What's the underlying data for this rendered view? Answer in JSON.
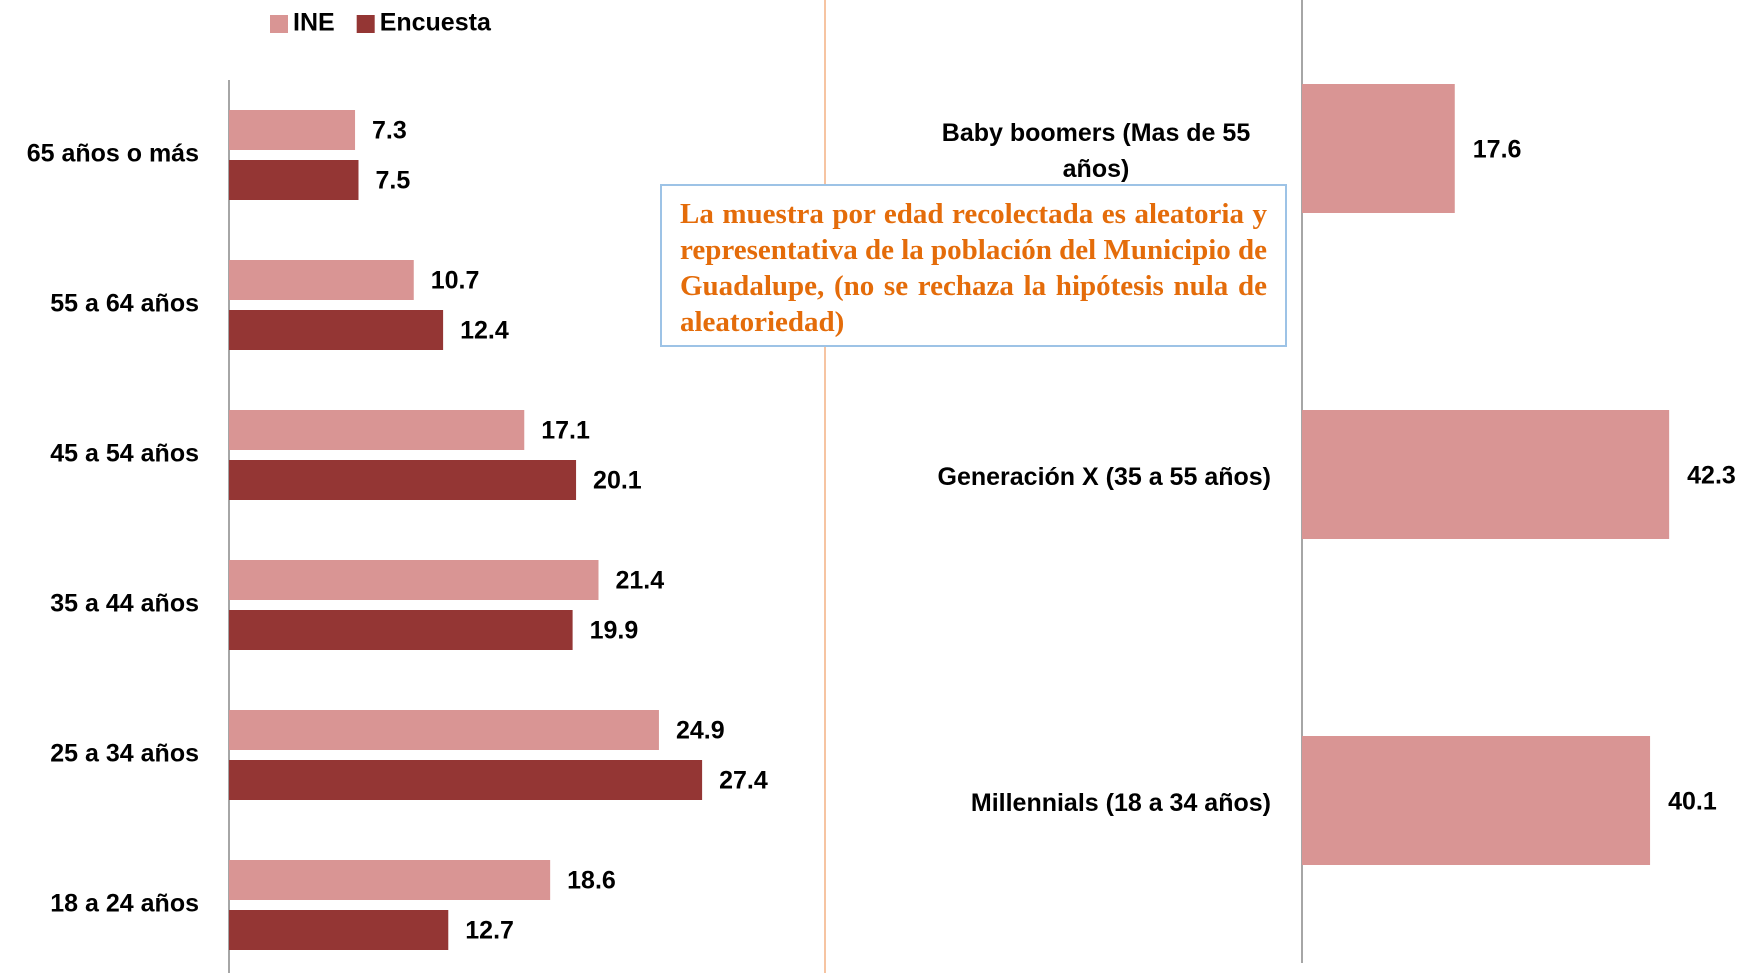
{
  "chart_data": [
    {
      "type": "bar",
      "orientation": "horizontal",
      "categories": [
        "65 años o más",
        "55 a 64 años",
        "45 a 54 años",
        "35 a 44 años",
        "25 a 34 años",
        "18 a 24 años"
      ],
      "series": [
        {
          "name": "INE",
          "color": "#d99594",
          "values": [
            7.3,
            10.7,
            17.1,
            21.4,
            24.9,
            18.6
          ]
        },
        {
          "name": "Encuesta",
          "color": "#943634",
          "values": [
            7.5,
            12.4,
            20.1,
            19.9,
            27.4,
            12.7
          ]
        }
      ],
      "xlim": [
        0,
        30
      ],
      "legend": "top"
    },
    {
      "type": "bar",
      "orientation": "horizontal",
      "categories": [
        "Baby boomers (Mas de 55 años)",
        "Generación X (35 a 55 años)",
        "Millennials (18 a 34 años)"
      ],
      "values": [
        17.6,
        42.3,
        40.1
      ],
      "color": "#d99594",
      "xlim": [
        0,
        50
      ]
    }
  ],
  "annotation": "La muestra por edad recolectada es aleatoria y representativa de la población del Municipio de Guadalupe, (no se rechaza la hipótesis nula de aleatoriedad)"
}
